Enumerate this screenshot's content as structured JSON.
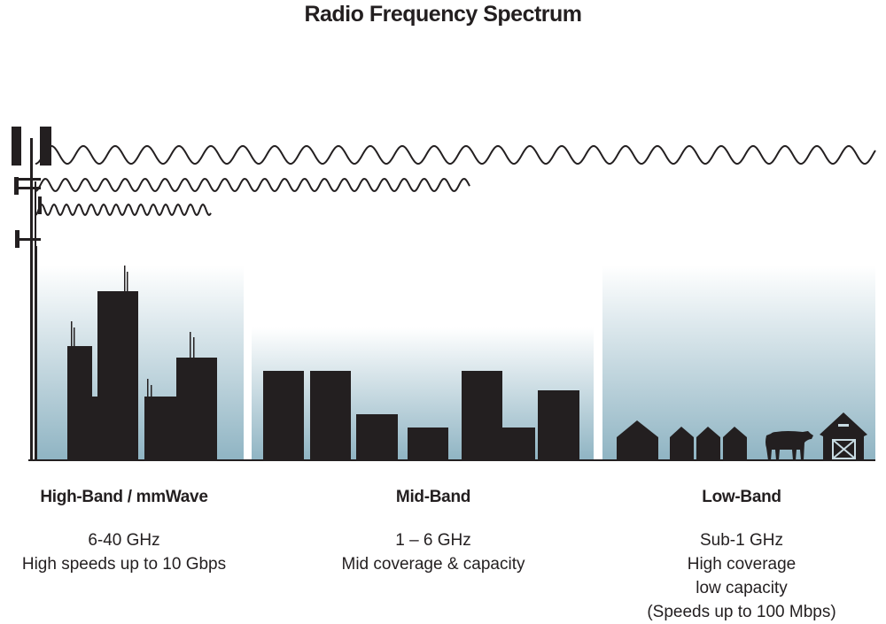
{
  "title": "Radio Frequency Spectrum",
  "colors": {
    "ink": "#231f20",
    "gradient_bottom": "#8fb4c3",
    "gradient_top": "#ffffff"
  },
  "bands": [
    {
      "name": "High-Band / mmWave",
      "lines": [
        "6-40 GHz",
        "High speeds up to 10 Gbps"
      ]
    },
    {
      "name": "Mid-Band",
      "lines": [
        "1 – 6 GHz",
        "Mid coverage & capacity"
      ]
    },
    {
      "name": "Low-Band",
      "lines": [
        "Sub-1 GHz",
        "High coverage",
        "low capacity",
        "(Speeds up to 100 Mbps)"
      ]
    }
  ]
}
